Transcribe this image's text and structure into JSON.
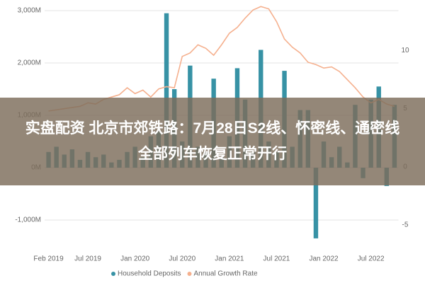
{
  "chart_data": {
    "type": "bar-line",
    "categories": [
      "Feb 2019",
      null,
      null,
      null,
      null,
      "Jul 2019",
      null,
      null,
      null,
      null,
      null,
      "Jan 2020",
      null,
      null,
      null,
      null,
      null,
      "Jul 2020",
      null,
      null,
      null,
      null,
      null,
      "Jan 2021",
      null,
      null,
      null,
      null,
      null,
      "Jul 2021",
      null,
      null,
      null,
      null,
      null,
      "Jan 2022",
      null,
      null,
      null,
      null,
      null,
      "Jul 2022",
      null,
      null,
      null
    ],
    "series": [
      {
        "name": "Household Deposits",
        "color": "#3792a5",
        "type": "bar",
        "values": [
          300,
          400,
          250,
          350,
          150,
          300,
          200,
          250,
          100,
          150,
          300,
          400,
          200,
          600,
          700,
          2950,
          1500,
          500,
          1950,
          400,
          300,
          1700,
          200,
          600,
          1900,
          1300,
          300,
          2250,
          500,
          300,
          1850,
          400,
          1100,
          1100,
          -1350,
          500,
          200,
          400,
          100,
          1200,
          -200,
          1300,
          1550,
          -350,
          1200
        ]
      },
      {
        "name": "Annual Growth Rate",
        "color": "#f5b08e",
        "type": "line",
        "axis": "y2",
        "values": [
          4.8,
          4.9,
          5.0,
          5.1,
          5.2,
          5.5,
          5.4,
          5.8,
          6.0,
          6.2,
          6.8,
          6.3,
          6.6,
          6.0,
          6.7,
          6.9,
          6.8,
          9.5,
          9.8,
          10.5,
          10.2,
          9.6,
          10.5,
          11.5,
          12.0,
          12.8,
          13.5,
          13.8,
          13.6,
          12.5,
          11.0,
          10.3,
          9.8,
          9.0,
          8.8,
          8.5,
          8.6,
          8.2,
          7.5,
          6.8,
          6.0,
          5.5,
          5.8,
          5.4,
          5.2
        ]
      }
    ],
    "ylim": [
      -1400,
      3100
    ],
    "yticks": [
      {
        "value": -1000,
        "label": "-1,000M"
      },
      {
        "value": 0,
        "label": "0M"
      },
      {
        "value": 1000,
        "label": "1,000M"
      },
      {
        "value": 2000,
        "label": "2,000M"
      },
      {
        "value": 3000,
        "label": "3,000M"
      }
    ],
    "y2lim": [
      -6.4,
      13.9
    ],
    "y2ticks": [
      -5,
      0,
      5,
      10
    ],
    "grid": true,
    "legend": "bottom"
  },
  "overlay": {
    "headline": "实盘配资 北京市郊铁路：7月28日S2线、怀密线、通密线全部列车恢复正常开行"
  }
}
